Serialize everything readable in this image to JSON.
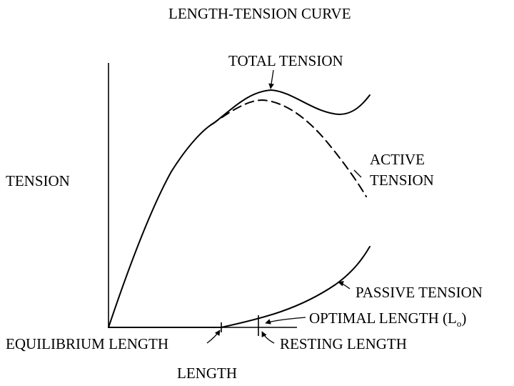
{
  "title": "LENGTH-TENSION CURVE",
  "axes": {
    "y_label": "TENSION",
    "x_label": "LENGTH"
  },
  "curves": {
    "total": "TOTAL TENSION",
    "active_line1": "ACTIVE",
    "active_line2": "TENSION",
    "passive": "PASSIVE TENSION"
  },
  "points": {
    "optimal_length": "OPTIMAL LENGTH (L",
    "optimal_length_subscript": "o",
    "optimal_length_close": ")",
    "equilibrium_length": "EQUILIBRIUM LENGTH",
    "resting_length": "RESTING LENGTH"
  },
  "styles": {
    "ink": "#000000",
    "background": "#ffffff"
  }
}
